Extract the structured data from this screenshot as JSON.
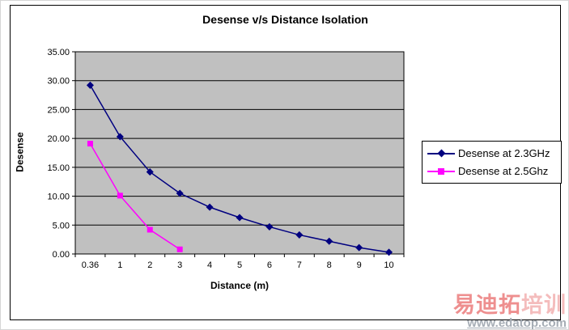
{
  "chart_data": {
    "type": "line",
    "title": "Desense v/s Distance Isolation",
    "xlabel": "Distance (m)",
    "ylabel": "Desense",
    "categories": [
      "0.36",
      "1",
      "2",
      "3",
      "4",
      "5",
      "6",
      "7",
      "8",
      "9",
      "10"
    ],
    "ylim": [
      0,
      35
    ],
    "y_ticks": {
      "values": [
        0,
        5,
        10,
        15,
        20,
        25,
        30,
        35
      ],
      "labels": [
        "0.00",
        "5.00",
        "10.00",
        "15.00",
        "20.00",
        "25.00",
        "30.00",
        "35.00"
      ]
    },
    "grid": true,
    "legend_position": "right",
    "plot_bg": "#c0c0c0",
    "gridline_color": "#000000",
    "series": [
      {
        "name": "Desense at 2.3GHz",
        "color": "#000080",
        "marker": "diamond",
        "values": [
          29.2,
          20.3,
          14.2,
          10.5,
          8.1,
          6.3,
          4.7,
          3.3,
          2.2,
          1.1,
          0.3
        ]
      },
      {
        "name": "Desense at 2.5Ghz",
        "color": "#ff00ff",
        "marker": "square",
        "values": [
          19.1,
          10.1,
          4.2,
          0.8
        ]
      }
    ]
  },
  "watermark": {
    "brand_part1": "易迪拓",
    "brand_part2": "培训",
    "url": "www.edatop.com",
    "brand_color_primary": "#ee8f8f",
    "brand_color_secondary": "#f4bcbc",
    "url_color": "#a6adb5"
  }
}
